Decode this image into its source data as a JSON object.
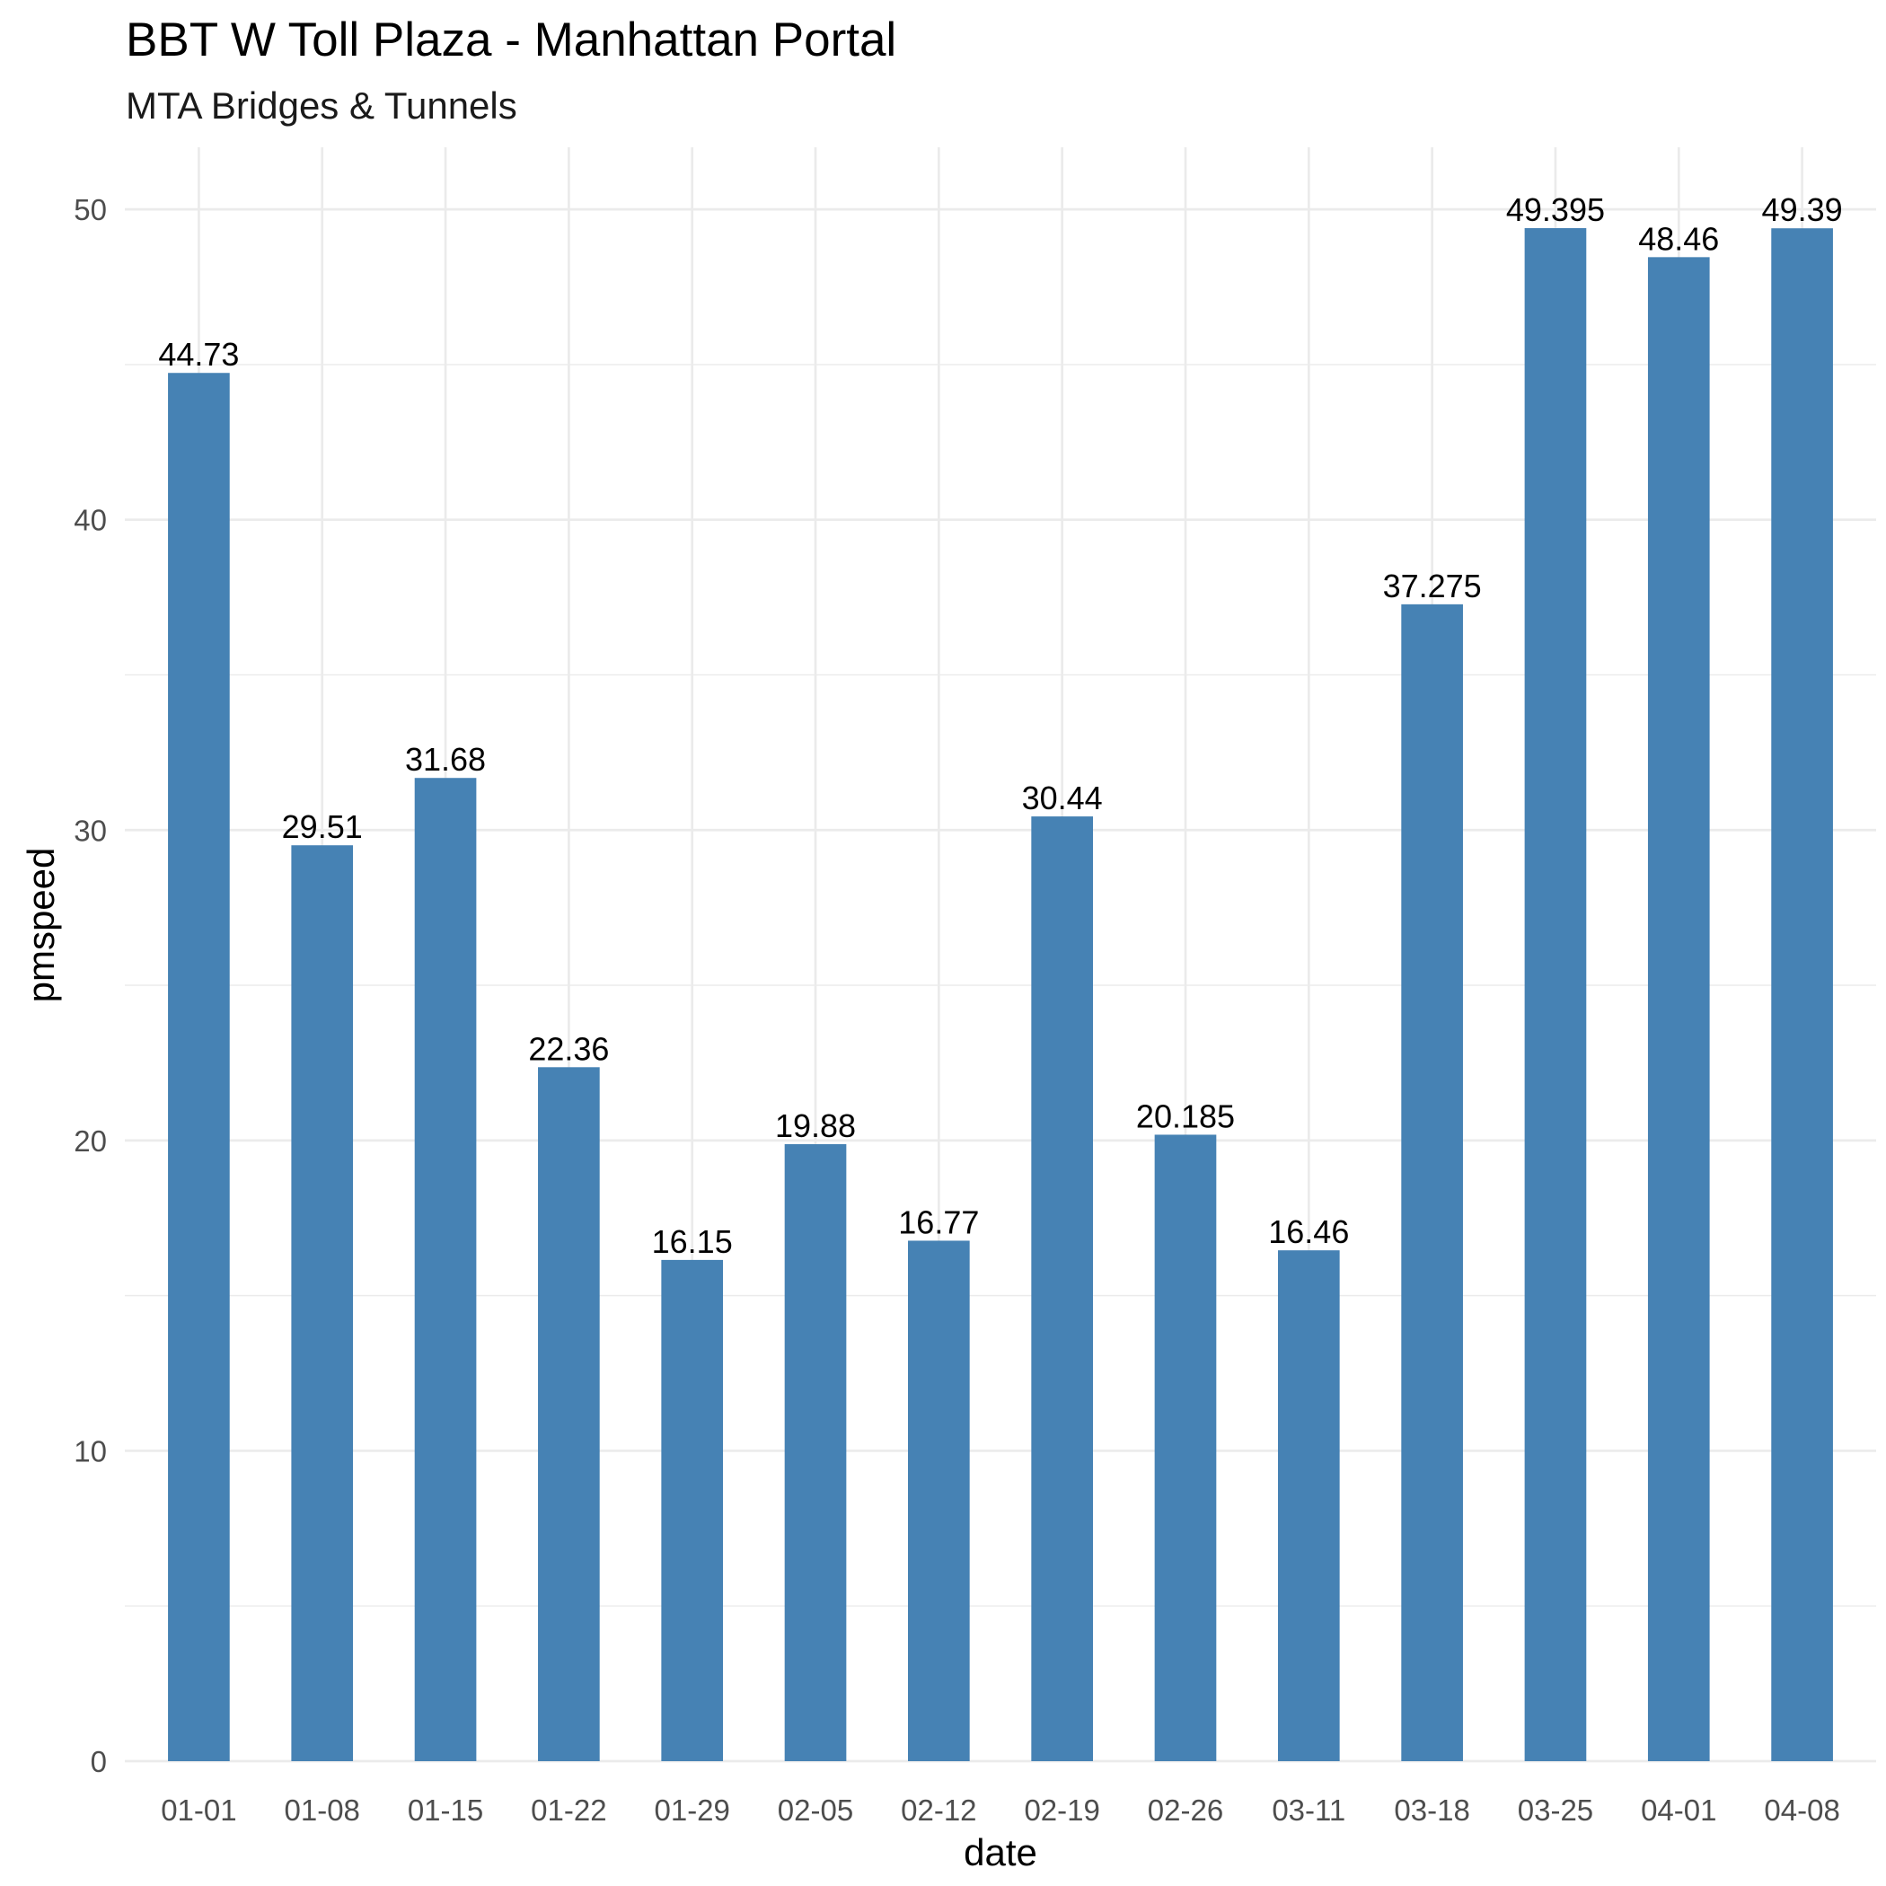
{
  "chart_data": {
    "type": "bar",
    "title": "BBT W Toll Plaza - Manhattan Portal",
    "subtitle": "MTA Bridges & Tunnels",
    "xlabel": "date",
    "ylabel": "pmspeed",
    "categories": [
      "01-01",
      "01-08",
      "01-15",
      "01-22",
      "01-29",
      "02-05",
      "02-12",
      "02-19",
      "02-26",
      "03-11",
      "03-18",
      "03-25",
      "04-01",
      "04-08"
    ],
    "values": [
      44.73,
      29.51,
      31.68,
      22.36,
      16.15,
      19.88,
      16.77,
      30.44,
      20.185,
      16.46,
      37.275,
      49.395,
      48.46,
      49.39
    ],
    "data_labels": [
      "44.73",
      "29.51",
      "31.68",
      "22.36",
      "16.15",
      "19.88",
      "16.77",
      "30.44",
      "20.185",
      "16.46",
      "37.275",
      "49.395",
      "48.46",
      "49.39"
    ],
    "ylim": [
      0,
      52
    ],
    "yticks": [
      0,
      10,
      20,
      30,
      40,
      50
    ],
    "ytick_labels": [
      "0",
      "10",
      "20",
      "30",
      "40",
      "50"
    ],
    "grid": true,
    "legend": "none",
    "bar_color": "#4682B4"
  }
}
